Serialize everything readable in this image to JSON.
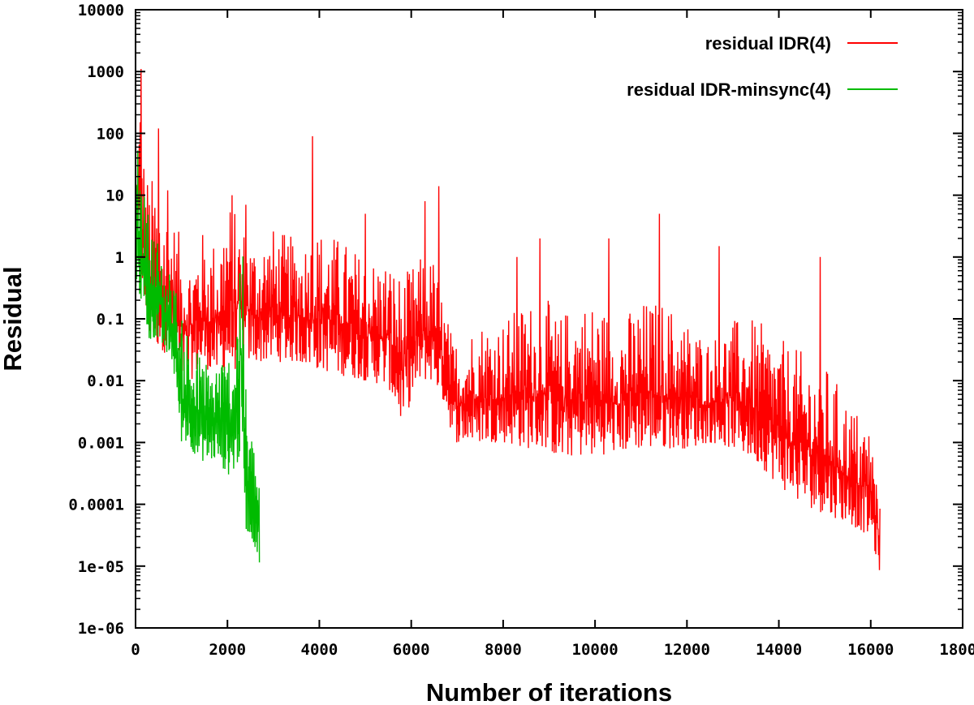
{
  "chart_data": {
    "type": "line",
    "title": "",
    "xlabel": "Number of iterations",
    "ylabel": "Residual",
    "xlim": [
      0,
      18000
    ],
    "ylim": [
      1e-06,
      10000
    ],
    "yscale": "log",
    "grid": false,
    "legend_position": "top-right",
    "x_ticks": [
      0,
      2000,
      4000,
      6000,
      8000,
      10000,
      12000,
      14000,
      16000,
      18000
    ],
    "x_tick_labels": [
      "0",
      "2000",
      "4000",
      "6000",
      "8000",
      "10000",
      "12000",
      "14000",
      "16000",
      "18000"
    ],
    "y_ticks": [
      1e-06,
      1e-05,
      0.0001,
      0.001,
      0.01,
      0.1,
      1,
      10,
      100,
      1000,
      10000
    ],
    "y_tick_labels": [
      "1e-06",
      "1e-05",
      "0.0001",
      "0.001",
      "0.01",
      "0.1",
      "1",
      "10",
      "100",
      "1000",
      "10000"
    ],
    "series": [
      {
        "name": "residual IDR(4)",
        "color": "#ff0000",
        "envelope_x": [
          0,
          50,
          100,
          150,
          200,
          300,
          400,
          600,
          800,
          1000,
          1200,
          1400,
          1600,
          1800,
          2000,
          2200,
          2400,
          2600,
          3000,
          3500,
          4000,
          4500,
          5000,
          5500,
          5800,
          6200,
          6500,
          6800,
          6900,
          7000,
          7500,
          8000,
          8500,
          9000,
          9200,
          9500,
          10000,
          10500,
          11000,
          11500,
          12000,
          12500,
          13000,
          13500,
          14000,
          14500,
          15000,
          15500,
          16000,
          16100,
          16200
        ],
        "envelope_low": [
          0.5,
          0.8,
          0.5,
          0.3,
          0.1,
          0.05,
          0.04,
          0.03,
          0.02,
          0.01,
          0.01,
          0.015,
          0.015,
          0.012,
          0.015,
          0.015,
          0.02,
          0.02,
          0.02,
          0.02,
          0.015,
          0.012,
          0.01,
          0.008,
          0.002,
          0.01,
          0.01,
          0.003,
          0.001,
          0.001,
          0.001,
          0.001,
          0.0008,
          0.0008,
          0.0005,
          0.0006,
          0.0006,
          0.0007,
          0.0008,
          0.0008,
          0.0008,
          0.001,
          0.0008,
          0.0005,
          0.0002,
          0.0001,
          7e-05,
          5e-05,
          3e-05,
          1.5e-05,
          8e-06
        ],
        "envelope_high": [
          5,
          100,
          1000,
          150,
          30,
          20,
          20,
          10,
          5,
          2,
          1,
          3,
          2,
          2,
          10,
          5,
          3,
          2,
          3,
          2,
          3,
          2,
          1,
          1,
          0.5,
          1,
          1,
          0.1,
          0.05,
          0.05,
          0.1,
          0.1,
          0.2,
          0.2,
          0.1,
          0.2,
          0.2,
          0.1,
          0.2,
          0.2,
          0.1,
          0.05,
          0.1,
          0.1,
          0.05,
          0.03,
          0.02,
          0.005,
          0.002,
          0.0005,
          0.0001
        ],
        "spikes": [
          {
            "x": 120,
            "y": 1100
          },
          {
            "x": 500,
            "y": 120
          },
          {
            "x": 700,
            "y": 12
          },
          {
            "x": 2100,
            "y": 10
          },
          {
            "x": 2400,
            "y": 7
          },
          {
            "x": 3850,
            "y": 90
          },
          {
            "x": 5000,
            "y": 5
          },
          {
            "x": 6600,
            "y": 14
          },
          {
            "x": 6300,
            "y": 8
          },
          {
            "x": 8300,
            "y": 1
          },
          {
            "x": 8800,
            "y": 2
          },
          {
            "x": 10300,
            "y": 2
          },
          {
            "x": 11400,
            "y": 5
          },
          {
            "x": 12700,
            "y": 1.5
          },
          {
            "x": 14900,
            "y": 1
          }
        ]
      },
      {
        "name": "residual IDR-minsync(4)",
        "color": "#00bb00",
        "envelope_x": [
          0,
          50,
          100,
          200,
          300,
          400,
          500,
          600,
          800,
          900,
          1000,
          1100,
          1200,
          1400,
          1600,
          1800,
          2000,
          2100,
          2200,
          2300,
          2350,
          2400,
          2500,
          2600,
          2700
        ],
        "envelope_low": [
          0.3,
          0.4,
          0.2,
          0.1,
          0.04,
          0.05,
          0.04,
          0.03,
          0.02,
          0.005,
          0.001,
          0.001,
          0.0008,
          0.0005,
          0.0005,
          0.0005,
          0.0003,
          0.0003,
          0.0004,
          0.0006,
          0.0003,
          4e-05,
          3e-05,
          2e-05,
          1e-05
        ],
        "envelope_high": [
          60,
          80,
          40,
          10,
          5,
          3,
          2,
          1,
          0.5,
          0.3,
          0.1,
          0.1,
          0.05,
          0.03,
          0.02,
          0.03,
          0.03,
          0.05,
          0.2,
          7,
          0.5,
          0.01,
          0.002,
          0.001,
          0.0005
        ]
      }
    ]
  }
}
